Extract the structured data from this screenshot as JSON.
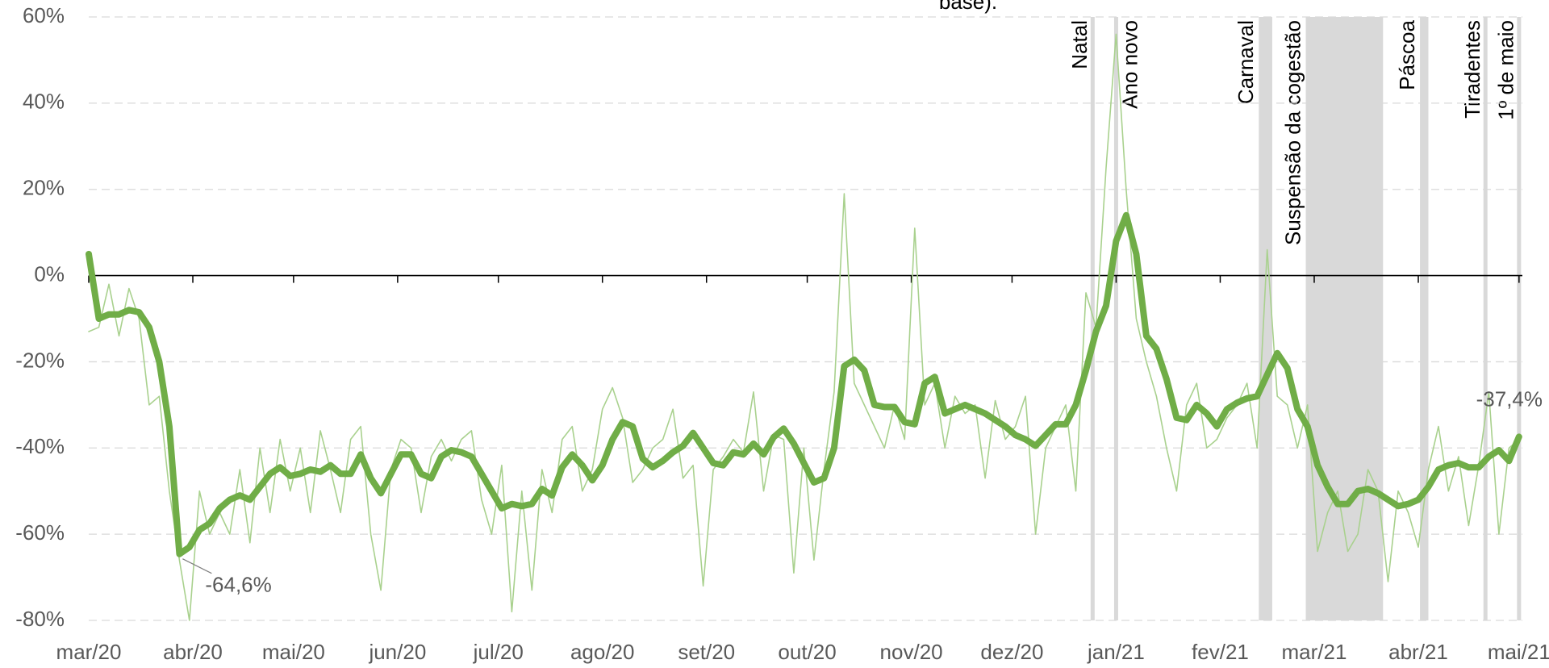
{
  "chart_data": {
    "type": "line",
    "title": "base).",
    "x": [
      0,
      3,
      6,
      9,
      12,
      15,
      18,
      21,
      24,
      27,
      30,
      33,
      36,
      39,
      42,
      45,
      48,
      51,
      54,
      57,
      60,
      63,
      66,
      69,
      72,
      75,
      78,
      81,
      84,
      87,
      90,
      93,
      96,
      99,
      102,
      105,
      108,
      111,
      114,
      117,
      120,
      123,
      126,
      129,
      132,
      135,
      138,
      141,
      144,
      147,
      150,
      153,
      156,
      159,
      162,
      165,
      168,
      171,
      174,
      177,
      180,
      183,
      186,
      189,
      192,
      195,
      198,
      201,
      204,
      207,
      210,
      213,
      216,
      219,
      222,
      225,
      228,
      231,
      234,
      237,
      240,
      243,
      246,
      249,
      252,
      255,
      258,
      261,
      264,
      267,
      270,
      273,
      276,
      279,
      282,
      285,
      288,
      291,
      294,
      297,
      300,
      303,
      306,
      309,
      312,
      315,
      318,
      321,
      324,
      327,
      330,
      333,
      336,
      339,
      342,
      345,
      348,
      351,
      354,
      357,
      360,
      363,
      366,
      369,
      372,
      375,
      378,
      381,
      384,
      387,
      390,
      393,
      396,
      399,
      402,
      405,
      408,
      411,
      414,
      417,
      420,
      423,
      426
    ],
    "series": [
      {
        "color": "#a9d18e",
        "width": 1.6,
        "values": [
          -13,
          -12,
          -2,
          -14,
          -3,
          -10,
          -30,
          -28,
          -50,
          -66,
          -80,
          -50,
          -60,
          -55,
          -60,
          -45,
          -62,
          -40,
          -55,
          -38,
          -50,
          -40,
          -55,
          -36,
          -45,
          -55,
          -38,
          -35,
          -60,
          -73,
          -45,
          -38,
          -40,
          -55,
          -42,
          -38,
          -43,
          -38,
          -36,
          -52,
          -60,
          -44,
          -78,
          -50,
          -73,
          -45,
          -55,
          -38,
          -35,
          -50,
          -45,
          -31,
          -26,
          -33,
          -48,
          -45,
          -40,
          -38,
          -31,
          -47,
          -44,
          -72,
          -45,
          -42,
          -38,
          -41,
          -27,
          -50,
          -37,
          -38,
          -69,
          -40,
          -66,
          -45,
          -27,
          19,
          -25,
          -30,
          -35,
          -40,
          -30,
          -38,
          11,
          -30,
          -25,
          -40,
          -28,
          -32,
          -30,
          -47,
          -29,
          -38,
          -35,
          -28,
          -60,
          -40,
          -35,
          -30,
          -50,
          -4,
          -12,
          25,
          56,
          20,
          -10,
          -20,
          -28,
          -40,
          -50,
          -30,
          -25,
          -40,
          -38,
          -33,
          -30,
          -25,
          -40,
          6,
          -28,
          -30,
          -40,
          -30,
          -64,
          -55,
          -50,
          -64,
          -60,
          -45,
          -50,
          -71,
          -50,
          -55,
          -63,
          -45,
          -35,
          -50,
          -42,
          -58,
          -44,
          -27,
          -60,
          -40,
          -38
        ]
      },
      {
        "color": "#70ad47",
        "width": 8,
        "values": [
          5,
          -10,
          -9,
          -9,
          -8,
          -8.5,
          -12,
          -20,
          -35,
          -64.6,
          -63,
          -59,
          -57.5,
          -54,
          -52,
          -51,
          -52,
          -49,
          -46,
          -44.5,
          -46.5,
          -46,
          -45,
          -45.5,
          -44,
          -46,
          -46,
          -41.5,
          -47,
          -50.5,
          -46,
          -41.5,
          -41.5,
          -46,
          -47,
          -42,
          -40.5,
          -41,
          -42,
          -46,
          -50,
          -54,
          -53,
          -53.5,
          -53,
          -49.5,
          -51,
          -44.5,
          -41.5,
          -44,
          -47.5,
          -44,
          -38,
          -34,
          -35,
          -42.5,
          -44.5,
          -43,
          -41,
          -39.5,
          -36.5,
          -40,
          -43.5,
          -44,
          -41,
          -41.5,
          -39,
          -41.5,
          -37.5,
          -35.5,
          -39,
          -43.5,
          -48,
          -47,
          -40,
          -21,
          -19.5,
          -22,
          -30,
          -30.5,
          -30.5,
          -34,
          -34.5,
          -25,
          -23.5,
          -32,
          -31,
          -30,
          -31,
          -32,
          -33.5,
          -35,
          -37,
          -38,
          -39.5,
          -37,
          -34.5,
          -34.5,
          -30,
          -22,
          -13,
          -7,
          8,
          14,
          5,
          -14,
          -17,
          -24,
          -33,
          -33.5,
          -30,
          -32,
          -35,
          -31,
          -29.5,
          -28.5,
          -28,
          -23,
          -18,
          -21.5,
          -31,
          -35,
          -44,
          -49,
          -53,
          -53,
          -50,
          -49.5,
          -50.5,
          -52,
          -53.5,
          -53,
          -52,
          -49,
          -45,
          -44,
          -43.5,
          -44.5,
          -44.5,
          -42,
          -40.5,
          -43,
          -37.4
        ],
        "value_labels": [
          null,
          null,
          null,
          null,
          null,
          null,
          null,
          null,
          null,
          "-64,6%",
          null,
          null,
          null,
          null,
          null,
          null,
          null,
          null,
          null,
          null,
          null,
          null,
          null,
          null,
          null,
          null,
          null,
          null,
          null,
          null,
          null,
          null,
          null,
          null,
          null,
          null,
          null,
          null,
          null,
          null,
          null,
          null,
          null,
          null,
          null,
          null,
          null,
          null,
          null,
          null,
          null,
          null,
          null,
          null,
          null,
          null,
          null,
          null,
          null,
          null,
          null,
          null,
          null,
          null,
          null,
          null,
          null,
          null,
          null,
          null,
          null,
          null,
          null,
          null,
          null,
          null,
          null,
          null,
          null,
          null,
          null,
          null,
          null,
          null,
          null,
          null,
          null,
          null,
          null,
          null,
          null,
          null,
          null,
          null,
          null,
          null,
          null,
          null,
          null,
          null,
          null,
          null,
          null,
          null,
          null,
          null,
          null,
          null,
          null,
          null,
          null,
          null,
          null,
          null,
          null,
          null,
          null,
          null,
          null,
          null,
          null,
          null,
          null,
          null,
          null,
          null,
          null,
          null,
          null,
          null,
          null,
          null,
          null,
          null,
          null,
          null,
          null,
          null,
          null,
          null,
          null,
          null,
          "-37,4%"
        ]
      }
    ],
    "xlim": [
      0,
      427
    ],
    "xticks": [
      {
        "value": 0,
        "label": "mar/20"
      },
      {
        "value": 31,
        "label": "abr/20"
      },
      {
        "value": 61,
        "label": "mai/20"
      },
      {
        "value": 92,
        "label": "jun/20"
      },
      {
        "value": 122,
        "label": "jul/20"
      },
      {
        "value": 153,
        "label": "ago/20"
      },
      {
        "value": 184,
        "label": "set/20"
      },
      {
        "value": 214,
        "label": "out/20"
      },
      {
        "value": 245,
        "label": "nov/20"
      },
      {
        "value": 275,
        "label": "dez/20"
      },
      {
        "value": 306,
        "label": "jan/21"
      },
      {
        "value": 337,
        "label": "fev/21"
      },
      {
        "value": 365,
        "label": "mar/21"
      },
      {
        "value": 396,
        "label": "abr/21"
      },
      {
        "value": 426,
        "label": "mai/21"
      }
    ],
    "ylim": [
      -80,
      60
    ],
    "yticks": [
      {
        "value": -80,
        "label": "-80%"
      },
      {
        "value": -60,
        "label": "-60%"
      },
      {
        "value": -40,
        "label": "-40%"
      },
      {
        "value": -20,
        "label": "-20%"
      },
      {
        "value": 0,
        "label": "0%"
      },
      {
        "value": 20,
        "label": "20%"
      },
      {
        "value": 40,
        "label": "40%"
      },
      {
        "value": 60,
        "label": "60%"
      }
    ],
    "grid": true,
    "annotations": [
      {
        "label": "Natal",
        "start": 299,
        "end": 299
      },
      {
        "label": "Ano novo",
        "start": 306,
        "end": 306
      },
      {
        "label": "Carnaval",
        "start": 348.5,
        "end": 352.5
      },
      {
        "label": "Suspensão da cogestão",
        "start": 362.5,
        "end": 385.5
      },
      {
        "label": "Páscoa",
        "start": 396.5,
        "end": 399
      },
      {
        "label": "Tiradentes",
        "start": 416,
        "end": 416
      },
      {
        "label": "1º de maio",
        "start": 426,
        "end": 426
      }
    ]
  }
}
